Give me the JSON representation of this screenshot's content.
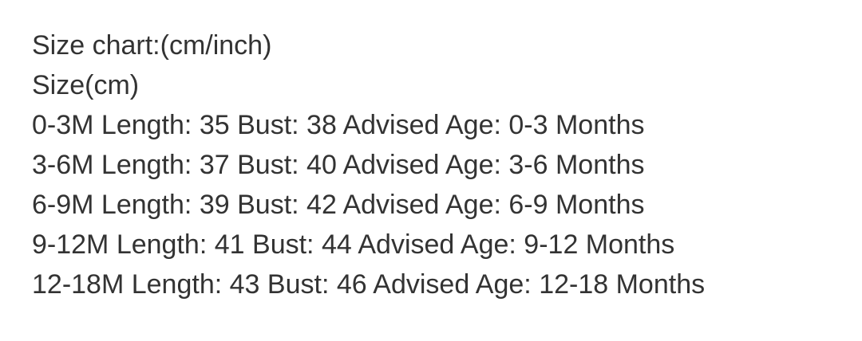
{
  "page": {
    "background_color": "#ffffff",
    "text_color": "#333333"
  },
  "size_chart": {
    "title": "Size chart:(cm/inch)",
    "unit_line": "Size(cm)",
    "labels": {
      "length": "Length:",
      "bust": "Bust:",
      "advised_age": "Advised Age:"
    },
    "rows": [
      {
        "size": "0-3M",
        "length": "35",
        "bust": "38",
        "advised_age": "0-3 Months"
      },
      {
        "size": "3-6M",
        "length": "37",
        "bust": "40",
        "advised_age": "3-6 Months"
      },
      {
        "size": "6-9M",
        "length": "39",
        "bust": "42",
        "advised_age": "6-9 Months"
      },
      {
        "size": "9-12M",
        "length": "41",
        "bust": "44",
        "advised_age": "9-12 Months"
      },
      {
        "size": "12-18M",
        "length": "43",
        "bust": "46",
        "advised_age": "12-18 Months"
      }
    ]
  }
}
